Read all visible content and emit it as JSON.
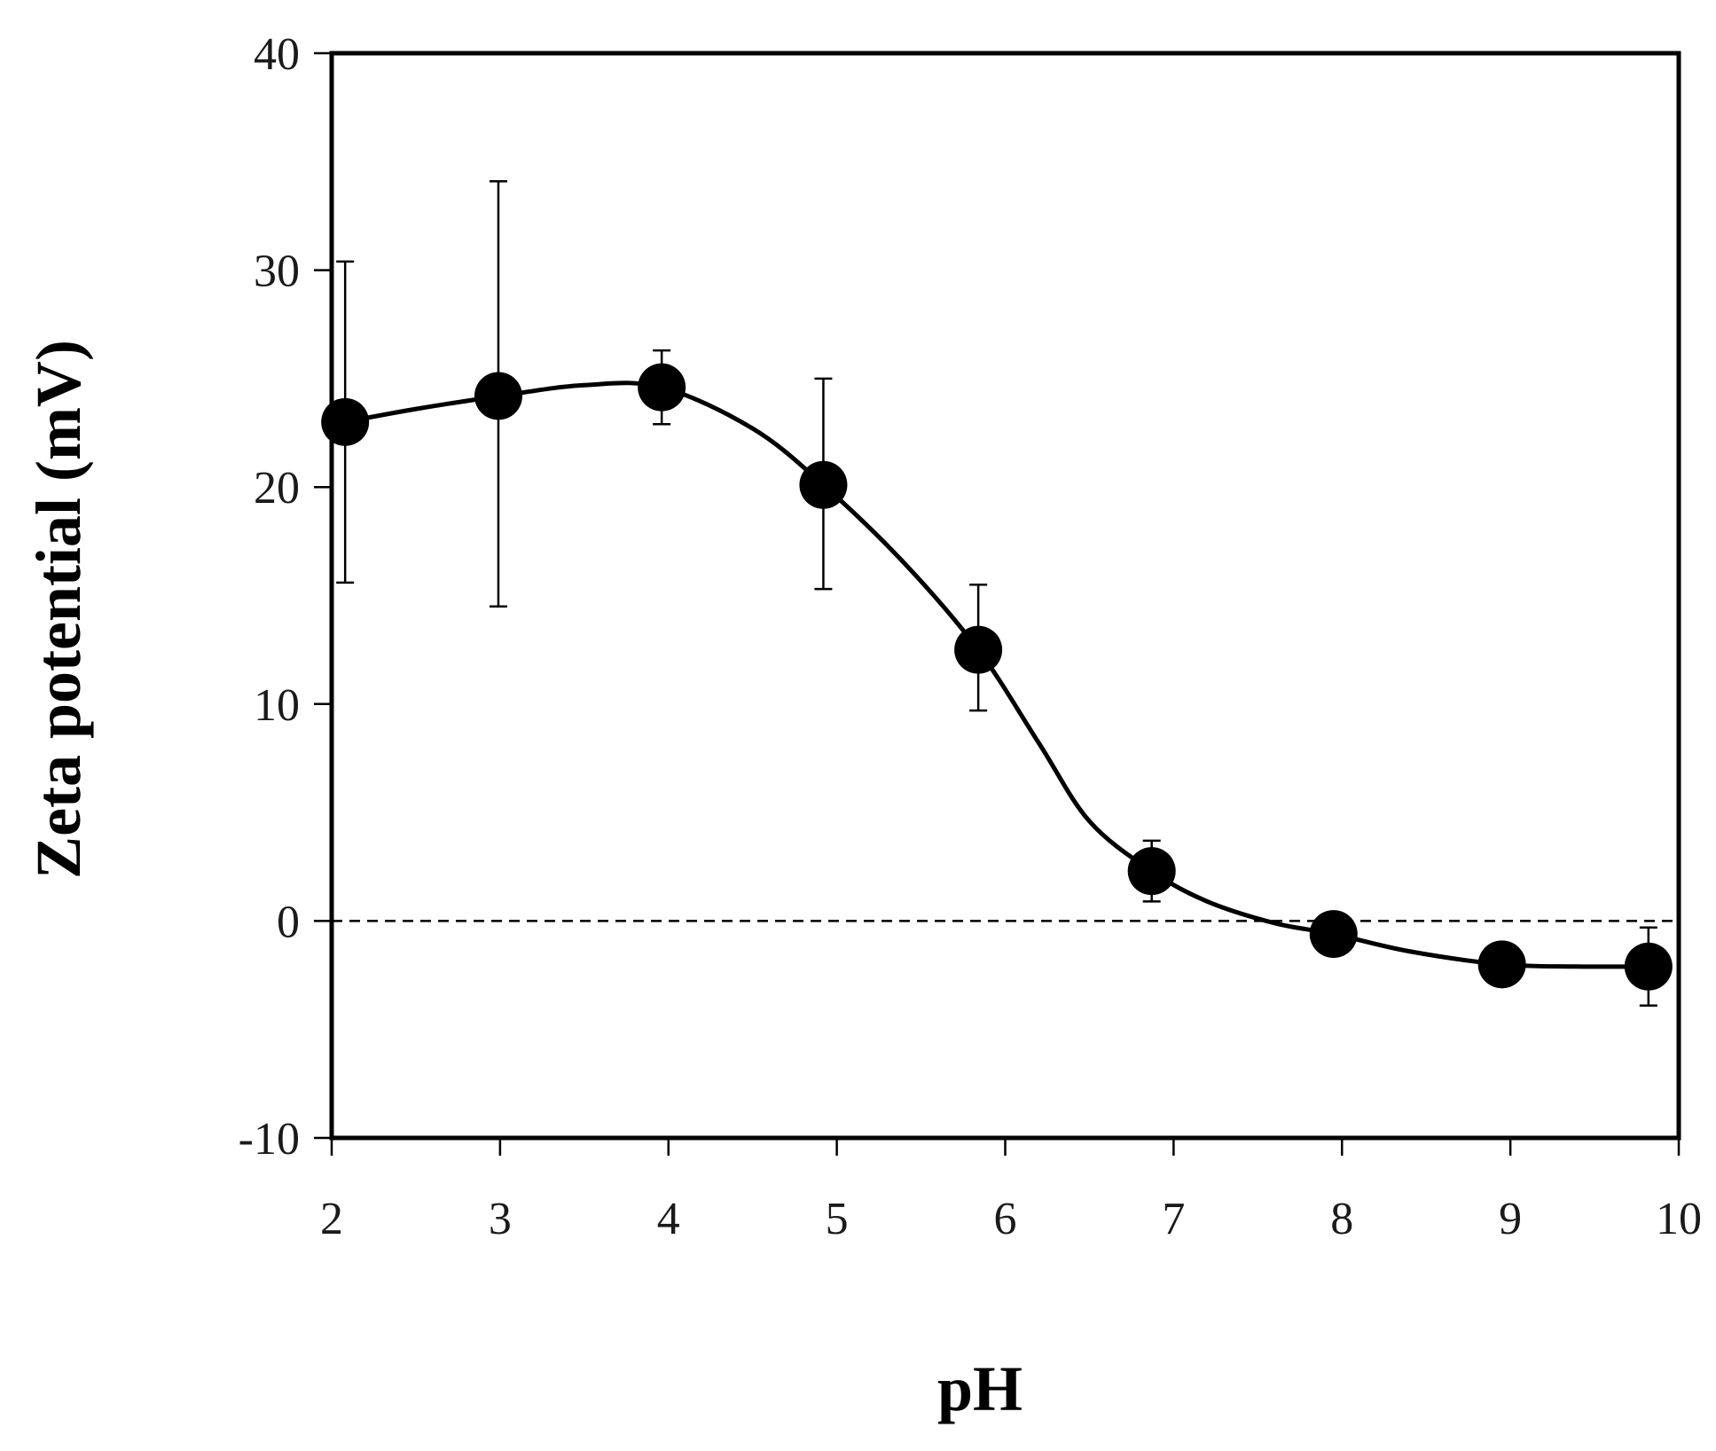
{
  "chart_data": {
    "type": "scatter",
    "title": "",
    "xlabel": "pH",
    "ylabel": "Zeta potential (mV)",
    "xlim": [
      2,
      10
    ],
    "ylim": [
      -10,
      40
    ],
    "xticks": [
      2,
      3,
      4,
      5,
      6,
      7,
      8,
      9,
      10
    ],
    "yticks": [
      -10,
      0,
      10,
      20,
      30,
      40
    ],
    "xtick_labels": [
      "2",
      "3",
      "4",
      "5",
      "6",
      "7",
      "8",
      "9",
      "10"
    ],
    "ytick_labels": [
      "-10",
      "0",
      "10",
      "20",
      "30",
      "40"
    ],
    "grid": false,
    "reference_line": {
      "y": 0,
      "style": "dashed"
    },
    "series": [
      {
        "name": "Zeta potential",
        "x": [
          2.08,
          2.99,
          3.96,
          4.92,
          5.84,
          6.87,
          7.95,
          8.95,
          9.82
        ],
        "y": [
          23.0,
          24.2,
          24.6,
          20.1,
          12.5,
          2.3,
          -0.6,
          -2.0,
          -2.1
        ],
        "y_err_low": [
          15.6,
          14.5,
          22.9,
          15.3,
          9.7,
          0.9,
          -0.6,
          -2.0,
          -3.9
        ],
        "y_err_high": [
          30.4,
          34.1,
          26.3,
          25.0,
          15.5,
          3.7,
          -0.6,
          -2.0,
          -0.3
        ],
        "marker": "filled-circle",
        "color": "#000000"
      }
    ],
    "fit_curve": {
      "x": [
        2.08,
        2.5,
        3.0,
        3.5,
        3.96,
        4.5,
        4.92,
        5.4,
        5.84,
        6.2,
        6.5,
        6.87,
        7.2,
        7.6,
        7.95,
        8.4,
        8.95,
        9.4,
        9.82
      ],
      "y": [
        23.0,
        23.6,
        24.2,
        24.7,
        24.6,
        22.7,
        20.1,
        16.5,
        12.5,
        8.2,
        4.6,
        2.3,
        0.9,
        -0.1,
        -0.6,
        -1.4,
        -2.0,
        -2.1,
        -2.1
      ],
      "color": "#000000"
    }
  }
}
